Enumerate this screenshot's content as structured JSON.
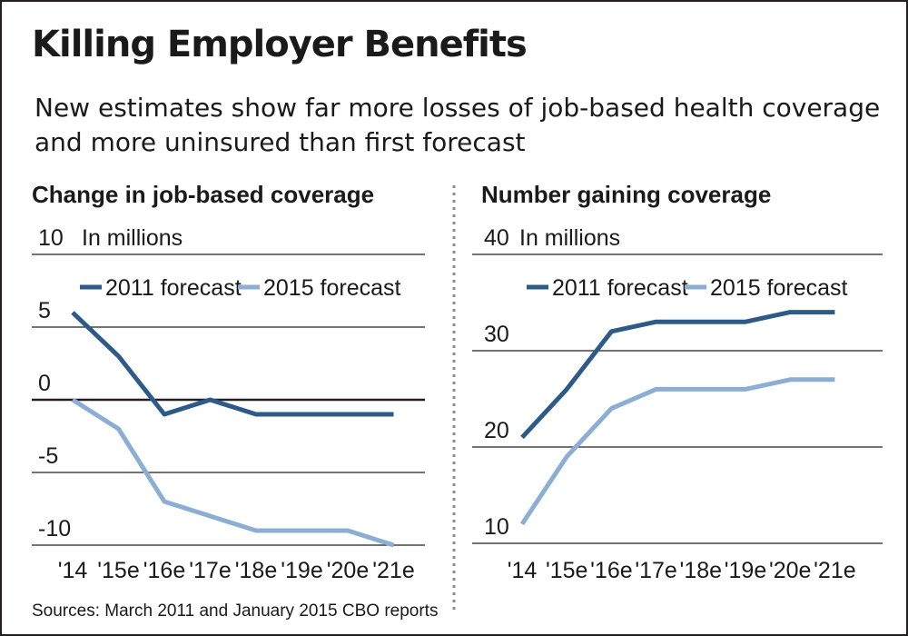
{
  "title": "Killing Employer Benefits",
  "subtitle": "New estimates show far more losses of job-based health coverage and more uninsured than first forecast",
  "source": "Sources: March 2011 and January 2015 CBO reports",
  "colors": {
    "series_2011": "#2e5a87",
    "series_2015": "#8daed4",
    "gridline": "#231f20",
    "divider": "#8c8c8c"
  },
  "chart_data": [
    {
      "type": "line",
      "title": "Change in job-based coverage",
      "units_label": "In millions",
      "x": [
        "'14",
        "'15e",
        "'16e",
        "'17e",
        "'18e",
        "'19e",
        "'20e",
        "'21e"
      ],
      "yticks": [
        10,
        5,
        0,
        -5,
        -10
      ],
      "ylim": [
        -10,
        10
      ],
      "grid": true,
      "legend_position": "top",
      "series": [
        {
          "name": "2011 forecast",
          "values": [
            6,
            3,
            -1,
            0,
            -1,
            -1,
            -1,
            -1
          ]
        },
        {
          "name": "2015 forecast",
          "values": [
            0,
            -2,
            -7,
            -8,
            -9,
            -9,
            -9,
            -10
          ]
        }
      ]
    },
    {
      "type": "line",
      "title": "Number gaining coverage",
      "units_label": "In millions",
      "x": [
        "'14",
        "'15e",
        "'16e",
        "'17e",
        "'18e",
        "'19e",
        "'20e",
        "'21e"
      ],
      "yticks": [
        40,
        30,
        20,
        10
      ],
      "ylim": [
        10,
        40
      ],
      "grid": true,
      "legend_position": "top",
      "series": [
        {
          "name": "2011 forecast",
          "values": [
            21,
            26,
            32,
            33,
            33,
            33,
            34,
            34
          ]
        },
        {
          "name": "2015 forecast",
          "values": [
            12,
            19,
            24,
            26,
            26,
            26,
            27,
            27
          ]
        }
      ]
    }
  ]
}
